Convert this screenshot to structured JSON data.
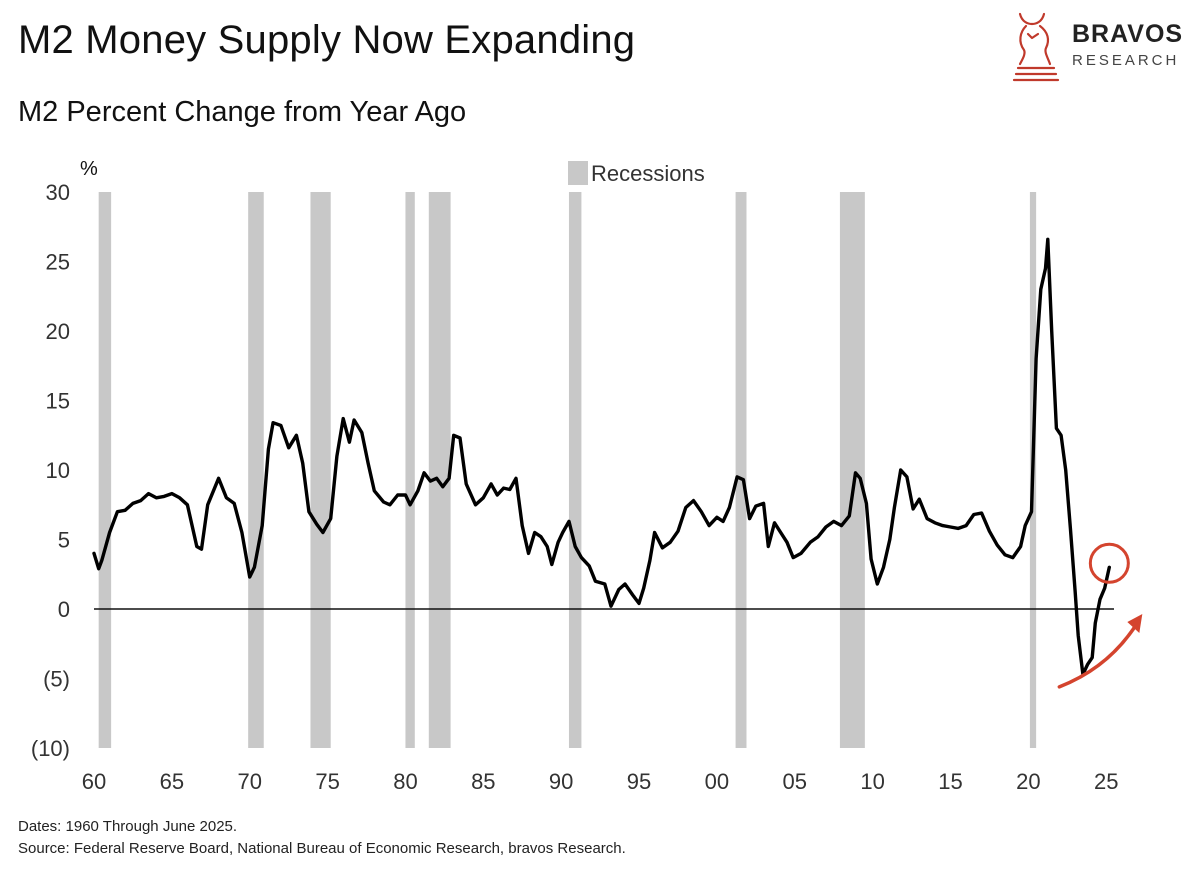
{
  "header": {
    "title": "M2 Money Supply Now Expanding",
    "subtitle": "M2 Percent Change from Year Ago"
  },
  "logo": {
    "name": "BRAVOS",
    "sub": "RESEARCH",
    "icon": "bull-chess-knight-icon",
    "color": "#c0392b"
  },
  "footer": {
    "dates": "Dates: 1960 Through June 2025.",
    "source": "Source: Federal Reserve Board, National Bureau of Economic Research, bravos Research."
  },
  "chart_data": {
    "type": "line",
    "y_unit_label": "%",
    "legend": {
      "label": "Recessions",
      "placement": "top-center",
      "color": "#c8c8c8"
    },
    "xlim": [
      1960,
      2025.5
    ],
    "ylim": [
      -10,
      30
    ],
    "x_ticks": [
      {
        "value": 1960,
        "label": "60"
      },
      {
        "value": 1965,
        "label": "65"
      },
      {
        "value": 1970,
        "label": "70"
      },
      {
        "value": 1975,
        "label": "75"
      },
      {
        "value": 1980,
        "label": "80"
      },
      {
        "value": 1985,
        "label": "85"
      },
      {
        "value": 1990,
        "label": "90"
      },
      {
        "value": 1995,
        "label": "95"
      },
      {
        "value": 2000,
        "label": "00"
      },
      {
        "value": 2005,
        "label": "05"
      },
      {
        "value": 2010,
        "label": "10"
      },
      {
        "value": 2015,
        "label": "15"
      },
      {
        "value": 2020,
        "label": "20"
      },
      {
        "value": 2025,
        "label": "25"
      }
    ],
    "y_ticks": [
      {
        "value": 30,
        "label": "30"
      },
      {
        "value": 25,
        "label": "25"
      },
      {
        "value": 20,
        "label": "20"
      },
      {
        "value": 15,
        "label": "15"
      },
      {
        "value": 10,
        "label": "10"
      },
      {
        "value": 5,
        "label": "5"
      },
      {
        "value": 0,
        "label": "0"
      },
      {
        "value": -5,
        "label": "(5)"
      },
      {
        "value": -10,
        "label": "(10)"
      }
    ],
    "recessions": [
      [
        1960.3,
        1961.1
      ],
      [
        1969.9,
        1970.9
      ],
      [
        1973.9,
        1975.2
      ],
      [
        1980.0,
        1980.6
      ],
      [
        1981.5,
        1982.9
      ],
      [
        1990.5,
        1991.3
      ],
      [
        2001.2,
        2001.9
      ],
      [
        2007.9,
        2009.5
      ],
      [
        2020.1,
        2020.5
      ]
    ],
    "series": [
      {
        "color": "#000000",
        "points": [
          [
            1960.0,
            4.0
          ],
          [
            1960.3,
            2.9
          ],
          [
            1960.5,
            3.5
          ],
          [
            1961.0,
            5.5
          ],
          [
            1961.5,
            7.0
          ],
          [
            1962.0,
            7.1
          ],
          [
            1962.5,
            7.6
          ],
          [
            1963.0,
            7.8
          ],
          [
            1963.5,
            8.3
          ],
          [
            1964.0,
            8.0
          ],
          [
            1964.5,
            8.1
          ],
          [
            1965.0,
            8.3
          ],
          [
            1965.5,
            8.0
          ],
          [
            1966.0,
            7.5
          ],
          [
            1966.6,
            4.5
          ],
          [
            1966.9,
            4.3
          ],
          [
            1967.3,
            7.5
          ],
          [
            1968.0,
            9.4
          ],
          [
            1968.5,
            8.0
          ],
          [
            1969.0,
            7.6
          ],
          [
            1969.5,
            5.5
          ],
          [
            1970.0,
            2.3
          ],
          [
            1970.3,
            3.0
          ],
          [
            1970.8,
            6.0
          ],
          [
            1971.2,
            11.5
          ],
          [
            1971.5,
            13.4
          ],
          [
            1972.0,
            13.2
          ],
          [
            1972.5,
            11.6
          ],
          [
            1973.0,
            12.5
          ],
          [
            1973.4,
            10.5
          ],
          [
            1973.8,
            7.0
          ],
          [
            1974.3,
            6.1
          ],
          [
            1974.7,
            5.5
          ],
          [
            1975.2,
            6.5
          ],
          [
            1975.6,
            11.0
          ],
          [
            1976.0,
            13.7
          ],
          [
            1976.4,
            12.0
          ],
          [
            1976.7,
            13.6
          ],
          [
            1977.2,
            12.7
          ],
          [
            1977.6,
            10.5
          ],
          [
            1978.0,
            8.5
          ],
          [
            1978.6,
            7.7
          ],
          [
            1979.0,
            7.5
          ],
          [
            1979.5,
            8.2
          ],
          [
            1980.0,
            8.2
          ],
          [
            1980.3,
            7.5
          ],
          [
            1980.8,
            8.5
          ],
          [
            1981.2,
            9.8
          ],
          [
            1981.6,
            9.2
          ],
          [
            1982.0,
            9.4
          ],
          [
            1982.4,
            8.8
          ],
          [
            1982.8,
            9.4
          ],
          [
            1983.1,
            12.5
          ],
          [
            1983.5,
            12.3
          ],
          [
            1983.9,
            9.0
          ],
          [
            1984.5,
            7.5
          ],
          [
            1985.0,
            8.0
          ],
          [
            1985.5,
            9.0
          ],
          [
            1985.9,
            8.2
          ],
          [
            1986.3,
            8.7
          ],
          [
            1986.7,
            8.6
          ],
          [
            1987.1,
            9.4
          ],
          [
            1987.5,
            6.0
          ],
          [
            1987.9,
            4.0
          ],
          [
            1988.3,
            5.5
          ],
          [
            1988.7,
            5.2
          ],
          [
            1989.1,
            4.5
          ],
          [
            1989.4,
            3.2
          ],
          [
            1989.8,
            4.8
          ],
          [
            1990.1,
            5.5
          ],
          [
            1990.5,
            6.3
          ],
          [
            1990.9,
            4.5
          ],
          [
            1991.3,
            3.7
          ],
          [
            1991.8,
            3.1
          ],
          [
            1992.2,
            2.0
          ],
          [
            1992.8,
            1.8
          ],
          [
            1993.2,
            0.2
          ],
          [
            1993.7,
            1.4
          ],
          [
            1994.1,
            1.8
          ],
          [
            1994.6,
            1.0
          ],
          [
            1995.0,
            0.4
          ],
          [
            1995.3,
            1.5
          ],
          [
            1995.7,
            3.5
          ],
          [
            1996.0,
            5.5
          ],
          [
            1996.5,
            4.4
          ],
          [
            1997.0,
            4.8
          ],
          [
            1997.5,
            5.6
          ],
          [
            1998.0,
            7.3
          ],
          [
            1998.5,
            7.8
          ],
          [
            1999.0,
            7.0
          ],
          [
            1999.5,
            6.0
          ],
          [
            2000.0,
            6.6
          ],
          [
            2000.4,
            6.3
          ],
          [
            2000.8,
            7.3
          ],
          [
            2001.3,
            9.5
          ],
          [
            2001.7,
            9.3
          ],
          [
            2002.1,
            6.5
          ],
          [
            2002.5,
            7.4
          ],
          [
            2003.0,
            7.6
          ],
          [
            2003.3,
            4.5
          ],
          [
            2003.7,
            6.2
          ],
          [
            2004.1,
            5.5
          ],
          [
            2004.5,
            4.8
          ],
          [
            2004.9,
            3.7
          ],
          [
            2005.4,
            4.0
          ],
          [
            2006.0,
            4.8
          ],
          [
            2006.5,
            5.2
          ],
          [
            2007.0,
            5.9
          ],
          [
            2007.5,
            6.3
          ],
          [
            2008.0,
            6.0
          ],
          [
            2008.5,
            6.7
          ],
          [
            2008.9,
            9.8
          ],
          [
            2009.2,
            9.4
          ],
          [
            2009.6,
            7.6
          ],
          [
            2009.9,
            3.6
          ],
          [
            2010.3,
            1.8
          ],
          [
            2010.7,
            3.0
          ],
          [
            2011.1,
            5.0
          ],
          [
            2011.4,
            7.3
          ],
          [
            2011.8,
            10.0
          ],
          [
            2012.2,
            9.5
          ],
          [
            2012.6,
            7.2
          ],
          [
            2013.0,
            7.9
          ],
          [
            2013.5,
            6.5
          ],
          [
            2014.0,
            6.2
          ],
          [
            2014.5,
            6.0
          ],
          [
            2015.0,
            5.9
          ],
          [
            2015.5,
            5.8
          ],
          [
            2016.0,
            6.0
          ],
          [
            2016.5,
            6.8
          ],
          [
            2017.0,
            6.9
          ],
          [
            2017.5,
            5.6
          ],
          [
            2018.0,
            4.6
          ],
          [
            2018.5,
            3.9
          ],
          [
            2019.0,
            3.7
          ],
          [
            2019.5,
            4.5
          ],
          [
            2019.8,
            6.0
          ],
          [
            2020.2,
            7.0
          ],
          [
            2020.5,
            18.0
          ],
          [
            2020.8,
            23.0
          ],
          [
            2021.1,
            24.5
          ],
          [
            2021.25,
            26.6
          ],
          [
            2021.5,
            20.0
          ],
          [
            2021.8,
            13.0
          ],
          [
            2022.1,
            12.5
          ],
          [
            2022.4,
            10.0
          ],
          [
            2022.7,
            5.8
          ],
          [
            2023.0,
            1.3
          ],
          [
            2023.2,
            -1.9
          ],
          [
            2023.5,
            -4.7
          ],
          [
            2023.8,
            -4.0
          ],
          [
            2024.1,
            -3.5
          ],
          [
            2024.3,
            -1.0
          ],
          [
            2024.6,
            0.7
          ],
          [
            2024.9,
            1.5
          ],
          [
            2025.2,
            3.0
          ]
        ]
      }
    ],
    "annotation": {
      "type": "circle-and-arrow",
      "x": 2025.2,
      "y": 3.0,
      "color": "#d4442e"
    }
  }
}
